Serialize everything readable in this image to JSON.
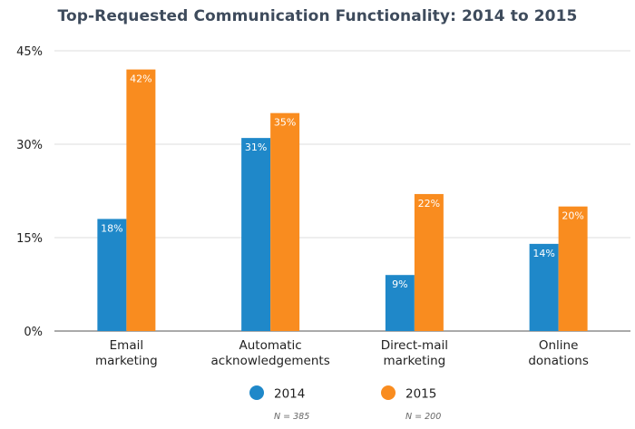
{
  "chart_data": {
    "type": "bar",
    "title": "Top-Requested Communication Functionality: 2014 to 2015",
    "categories": [
      [
        "Email",
        "marketing"
      ],
      [
        "Automatic",
        "acknowledgements"
      ],
      [
        "Direct-mail",
        "marketing"
      ],
      [
        "Online",
        "donations"
      ]
    ],
    "series": [
      {
        "name": "2014",
        "values": [
          18,
          31,
          9,
          14
        ],
        "labels": [
          "18%",
          "31%",
          "9%",
          "14%"
        ],
        "color": "#1f88c9",
        "note": "N = 385"
      },
      {
        "name": "2015",
        "values": [
          42,
          35,
          22,
          20
        ],
        "labels": [
          "42%",
          "35%",
          "22%",
          "20%"
        ],
        "color": "#f98c1f",
        "note": "N = 200"
      }
    ],
    "ylim": [
      0,
      45
    ],
    "yticks": [
      0,
      15,
      30,
      45
    ],
    "ytick_labels": [
      "0%",
      "15%",
      "30%",
      "45%"
    ],
    "grid": true,
    "legend_position": "bottom"
  }
}
